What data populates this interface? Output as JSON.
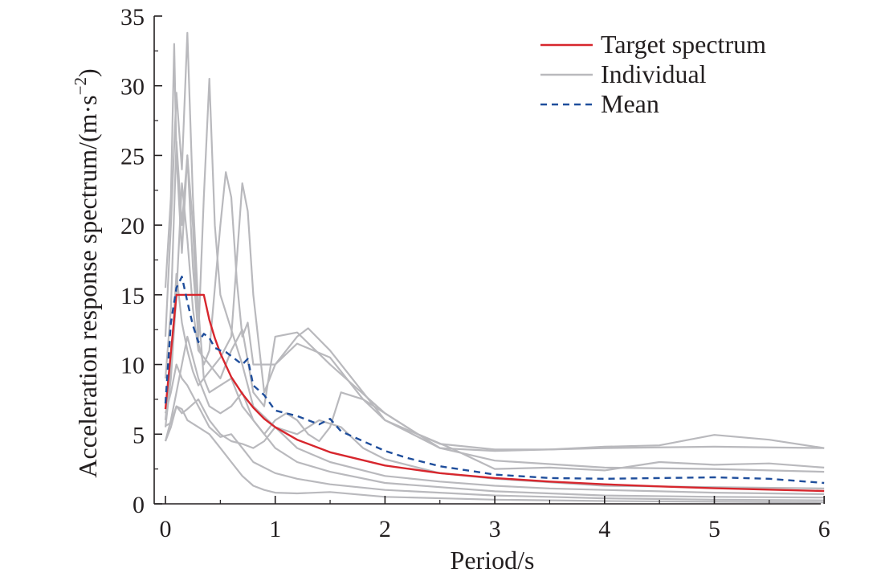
{
  "chart_data": {
    "type": "line",
    "xlabel": "Period/s",
    "ylabel": "Acceleration response spectrum/(m·s",
    "ylabel_sup": "−2",
    "ylabel_close": ")",
    "xlim": [
      0,
      6
    ],
    "ylim": [
      0,
      35
    ],
    "xticks": [
      0,
      1,
      2,
      3,
      4,
      5,
      6
    ],
    "yticks": [
      0,
      5,
      10,
      15,
      20,
      25,
      30,
      35
    ],
    "grid": false,
    "legend_position": "top-right",
    "legend": [
      {
        "label": "Target spectrum",
        "color": "#d7262d",
        "style": "solid"
      },
      {
        "label": "Individual",
        "color": "#b9b9bd",
        "style": "solid"
      },
      {
        "label": "Mean",
        "color": "#1f4e9c",
        "style": "dashed"
      }
    ],
    "series": [
      {
        "name": "Target spectrum",
        "color": "#d7262d",
        "style": "solid",
        "x": [
          0.0,
          0.1,
          0.15,
          0.2,
          0.25,
          0.3,
          0.35,
          0.4,
          0.45,
          0.5,
          0.6,
          0.7,
          0.8,
          0.9,
          1.0,
          1.2,
          1.5,
          2.0,
          2.5,
          3.0,
          3.5,
          4.0,
          4.5,
          5.0,
          5.5,
          6.0
        ],
        "y": [
          6.8,
          15.0,
          15.0,
          15.0,
          15.0,
          15.0,
          15.0,
          13.2,
          11.9,
          10.8,
          9.1,
          7.9,
          6.9,
          6.1,
          5.5,
          4.6,
          3.7,
          2.75,
          2.2,
          1.85,
          1.6,
          1.4,
          1.25,
          1.12,
          1.02,
          0.92
        ]
      },
      {
        "name": "Mean",
        "color": "#1f4e9c",
        "style": "dashed",
        "x": [
          0.0,
          0.05,
          0.1,
          0.15,
          0.2,
          0.25,
          0.3,
          0.35,
          0.4,
          0.45,
          0.5,
          0.55,
          0.6,
          0.65,
          0.7,
          0.75,
          0.8,
          0.9,
          1.0,
          1.1,
          1.2,
          1.3,
          1.4,
          1.5,
          1.6,
          1.8,
          2.0,
          2.2,
          2.5,
          3.0,
          3.5,
          4.0,
          4.5,
          5.0,
          5.5,
          6.0
        ],
        "y": [
          7.2,
          13.0,
          15.5,
          16.3,
          14.5,
          12.8,
          11.6,
          12.2,
          11.9,
          11.2,
          11.0,
          10.9,
          10.6,
          10.3,
          10.0,
          10.4,
          8.5,
          7.8,
          6.7,
          6.5,
          6.3,
          6.0,
          5.7,
          6.1,
          5.2,
          4.5,
          3.8,
          3.3,
          2.7,
          2.1,
          1.85,
          1.8,
          1.85,
          1.9,
          1.8,
          1.5
        ]
      },
      {
        "name": "",
        "color": "#b9b9bd",
        "style": "solid",
        "x": [
          0.0,
          0.05,
          0.1,
          0.15,
          0.2,
          0.25,
          0.3,
          0.4,
          0.5,
          0.6,
          0.7,
          0.8,
          0.9,
          1.0,
          1.2,
          1.5,
          2.0,
          2.5,
          3.0,
          4.0,
          5.0,
          6.0
        ],
        "y": [
          5.5,
          9.0,
          15.0,
          23.0,
          19.0,
          14.0,
          11.0,
          10.0,
          9.0,
          11.0,
          12.5,
          8.0,
          7.0,
          12.0,
          12.3,
          10.0,
          6.5,
          4.0,
          3.8,
          4.0,
          4.1,
          4.0
        ]
      },
      {
        "name": "",
        "color": "#b9b9bd",
        "style": "solid",
        "x": [
          0.0,
          0.05,
          0.08,
          0.1,
          0.15,
          0.2,
          0.25,
          0.3,
          0.35,
          0.4,
          0.45,
          0.5,
          0.6,
          0.7,
          0.8,
          1.0,
          1.2,
          1.5,
          2.0,
          2.5,
          3.0,
          3.5,
          4.0,
          4.5,
          5.0,
          5.5,
          6.0
        ],
        "y": [
          15.5,
          22.0,
          33.0,
          25.0,
          18.0,
          25.0,
          17.0,
          12.0,
          22.0,
          30.5,
          20.0,
          15.0,
          12.5,
          10.0,
          7.0,
          5.5,
          4.0,
          3.0,
          2.0,
          1.6,
          1.3,
          1.1,
          1.0,
          0.9,
          0.8,
          0.75,
          0.7
        ]
      },
      {
        "name": "",
        "color": "#b9b9bd",
        "style": "solid",
        "x": [
          0.0,
          0.05,
          0.1,
          0.15,
          0.2,
          0.25,
          0.3,
          0.35,
          0.4,
          0.5,
          0.6,
          0.7,
          0.8,
          1.0,
          1.2,
          1.5,
          2.0,
          3.0,
          4.0,
          5.0,
          6.0
        ],
        "y": [
          12.0,
          20.0,
          29.5,
          24.0,
          33.8,
          22.0,
          14.0,
          9.0,
          8.0,
          8.5,
          9.0,
          7.0,
          6.0,
          4.0,
          3.0,
          2.3,
          1.5,
          0.9,
          0.6,
          0.5,
          0.45
        ]
      },
      {
        "name": "",
        "color": "#b9b9bd",
        "style": "solid",
        "x": [
          0.0,
          0.05,
          0.1,
          0.15,
          0.2,
          0.25,
          0.3,
          0.35,
          0.4,
          0.5,
          0.55,
          0.6,
          0.65,
          0.7,
          0.75,
          0.8,
          1.0,
          1.2,
          1.5,
          1.8,
          2.0,
          2.5,
          3.0,
          4.0,
          5.0,
          6.0
        ],
        "y": [
          9.0,
          14.0,
          26.0,
          20.0,
          25.0,
          20.0,
          11.5,
          10.0,
          11.0,
          20.0,
          23.8,
          22.0,
          16.0,
          12.0,
          13.0,
          10.0,
          10.0,
          11.5,
          10.5,
          7.5,
          6.0,
          4.0,
          3.1,
          2.6,
          2.5,
          2.3
        ]
      },
      {
        "name": "",
        "color": "#b9b9bd",
        "style": "solid",
        "x": [
          0.0,
          0.05,
          0.1,
          0.15,
          0.2,
          0.25,
          0.3,
          0.35,
          0.4,
          0.5,
          0.6,
          0.7,
          0.75,
          0.8,
          0.9,
          1.0,
          1.1,
          1.2,
          1.3,
          1.5,
          2.0,
          2.5,
          3.0,
          3.5,
          4.0,
          4.5,
          5.0,
          5.5,
          6.0
        ],
        "y": [
          6.0,
          10.0,
          16.5,
          13.0,
          11.0,
          9.5,
          8.5,
          9.0,
          9.5,
          10.5,
          12.0,
          23.0,
          21.0,
          15.0,
          8.0,
          10.0,
          11.0,
          12.0,
          12.6,
          11.0,
          6.0,
          4.3,
          3.9,
          3.9,
          4.1,
          4.2,
          4.95,
          4.6,
          4.0
        ]
      },
      {
        "name": "",
        "color": "#b9b9bd",
        "style": "solid",
        "x": [
          0.0,
          0.05,
          0.1,
          0.15,
          0.2,
          0.3,
          0.4,
          0.5,
          0.6,
          0.7,
          0.8,
          0.9,
          1.0,
          1.1,
          1.2,
          1.3,
          1.4,
          1.5,
          1.6,
          1.8,
          2.0,
          2.3,
          2.6,
          3.0,
          3.5,
          4.0,
          4.5,
          5.0,
          5.5,
          6.0
        ],
        "y": [
          4.5,
          6.0,
          8.0,
          10.0,
          12.0,
          9.0,
          7.0,
          6.5,
          7.0,
          8.0,
          6.0,
          5.0,
          6.0,
          6.5,
          6.0,
          5.0,
          4.5,
          5.5,
          8.0,
          7.5,
          6.5,
          5.0,
          4.0,
          2.5,
          2.6,
          2.4,
          3.0,
          2.8,
          2.9,
          2.6
        ]
      },
      {
        "name": "",
        "color": "#b9b9bd",
        "style": "solid",
        "x": [
          0.0,
          0.05,
          0.1,
          0.15,
          0.2,
          0.3,
          0.4,
          0.5,
          0.6,
          0.7,
          0.8,
          0.9,
          1.0,
          1.2,
          1.4,
          1.6,
          1.8,
          2.0,
          2.5,
          3.0,
          4.0,
          5.0,
          6.0
        ],
        "y": [
          5.6,
          5.8,
          7.0,
          6.5,
          6.8,
          7.5,
          6.0,
          5.0,
          4.5,
          4.3,
          4.0,
          4.5,
          5.5,
          5.0,
          6.0,
          5.5,
          4.0,
          3.2,
          2.2,
          1.8,
          1.3,
          1.2,
          1.1
        ]
      },
      {
        "name": "",
        "color": "#b9b9bd",
        "style": "solid",
        "x": [
          0.0,
          0.05,
          0.1,
          0.15,
          0.2,
          0.3,
          0.4,
          0.5,
          0.6,
          0.7,
          0.8,
          1.0,
          1.2,
          1.5,
          2.0,
          3.0,
          4.0,
          5.0,
          6.0
        ],
        "y": [
          6.5,
          8.0,
          10.0,
          9.0,
          8.5,
          7.0,
          5.5,
          4.8,
          5.0,
          4.0,
          3.0,
          2.2,
          1.8,
          1.4,
          1.0,
          0.6,
          0.4,
          0.3,
          0.25
        ]
      },
      {
        "name": "",
        "color": "#b9b9bd",
        "style": "solid",
        "x": [
          0.0,
          0.05,
          0.1,
          0.15,
          0.2,
          0.3,
          0.4,
          0.5,
          0.6,
          0.7,
          0.8,
          0.9,
          1.0,
          1.2,
          1.5,
          2.0,
          3.0,
          4.0,
          5.0,
          6.0
        ],
        "y": [
          4.5,
          5.5,
          7.0,
          6.8,
          6.0,
          5.5,
          5.0,
          4.0,
          3.0,
          2.0,
          1.3,
          1.0,
          0.8,
          0.75,
          0.85,
          0.5,
          0.3,
          0.2,
          0.15,
          0.1
        ]
      }
    ]
  }
}
